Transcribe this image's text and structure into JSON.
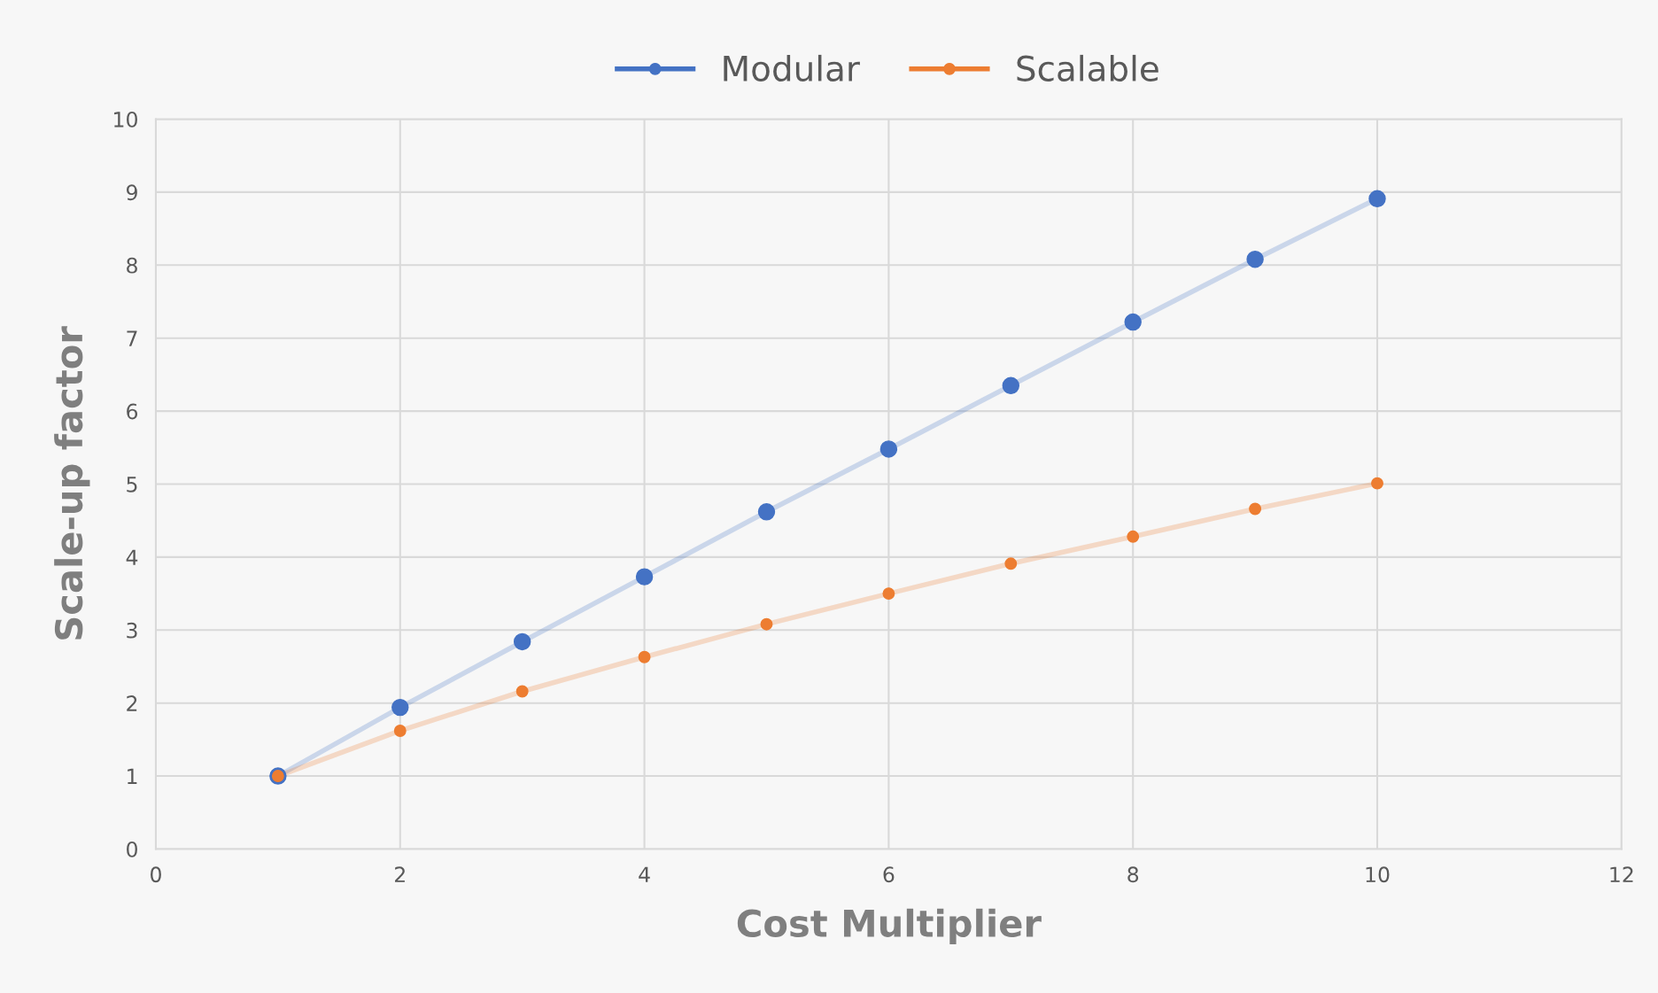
{
  "chart_data": {
    "type": "line",
    "xlabel": "Cost Multiplier",
    "ylabel": "Scale-up factor",
    "x": [
      1,
      2,
      3,
      4,
      5,
      6,
      7,
      8,
      9,
      10
    ],
    "series": [
      {
        "name": "Modular",
        "color": "#4472c4",
        "values": [
          1.0,
          1.94,
          2.84,
          3.73,
          4.62,
          5.48,
          6.35,
          7.22,
          8.08,
          8.91
        ]
      },
      {
        "name": "Scalable",
        "color": "#ed7d31",
        "values": [
          1.0,
          1.62,
          2.16,
          2.63,
          3.08,
          3.5,
          3.91,
          4.28,
          4.66,
          5.01
        ]
      }
    ],
    "xlim": [
      0,
      12
    ],
    "xticks": [
      0,
      2,
      4,
      6,
      8,
      10,
      12
    ],
    "ylim": [
      0,
      10
    ],
    "yticks": [
      0,
      1,
      2,
      3,
      4,
      5,
      6,
      7,
      8,
      9,
      10
    ],
    "grid": true,
    "legend": "top",
    "marker": "circle",
    "line_style": "solid"
  }
}
